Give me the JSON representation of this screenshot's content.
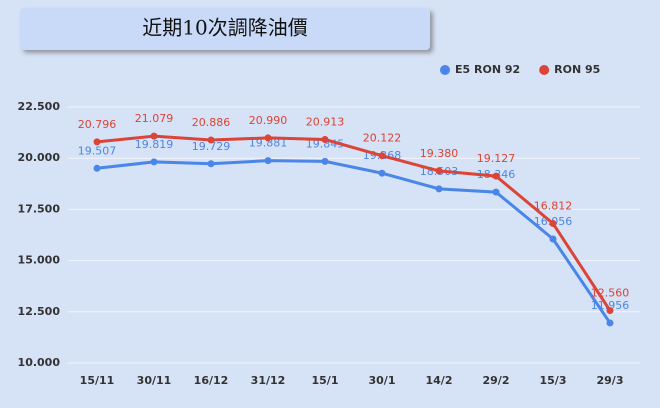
{
  "chart_data": {
    "type": "line",
    "title": "近期10次調降油價",
    "categories": [
      "15/11",
      "30/11",
      "16/12",
      "31/12",
      "15/1",
      "30/1",
      "14/2",
      "29/2",
      "15/3",
      "29/3"
    ],
    "series": [
      {
        "name": "E5 RON 92",
        "color": "#4a86e8",
        "values": [
          19.507,
          19.819,
          19.729,
          19.881,
          19.845,
          19.268,
          18.503,
          18.346,
          16.056,
          11.956
        ],
        "value_labels": [
          "19.507",
          "19.819",
          "19.729",
          "19.881",
          "19.845",
          "19.268",
          "18.503",
          "18.346",
          "16.056",
          "11.956"
        ]
      },
      {
        "name": "RON 95",
        "color": "#db4437",
        "values": [
          20.796,
          21.079,
          20.886,
          20.99,
          20.913,
          20.122,
          19.38,
          19.127,
          16.812,
          12.56
        ],
        "value_labels": [
          "20.796",
          "21.079",
          "20.886",
          "20.990",
          "20.913",
          "20.122",
          "19.380",
          "19.127",
          "16.812",
          "12.560"
        ]
      }
    ],
    "ylim": [
      10,
      22.5
    ],
    "yticks": [
      {
        "value": 10,
        "label": "10.000"
      },
      {
        "value": 12.5,
        "label": "12.500"
      },
      {
        "value": 15,
        "label": "15.000"
      },
      {
        "value": 17.5,
        "label": "17.500"
      },
      {
        "value": 20,
        "label": "20.000"
      },
      {
        "value": 22.5,
        "label": "22.500"
      }
    ],
    "grid": true,
    "legend": "top-right"
  }
}
